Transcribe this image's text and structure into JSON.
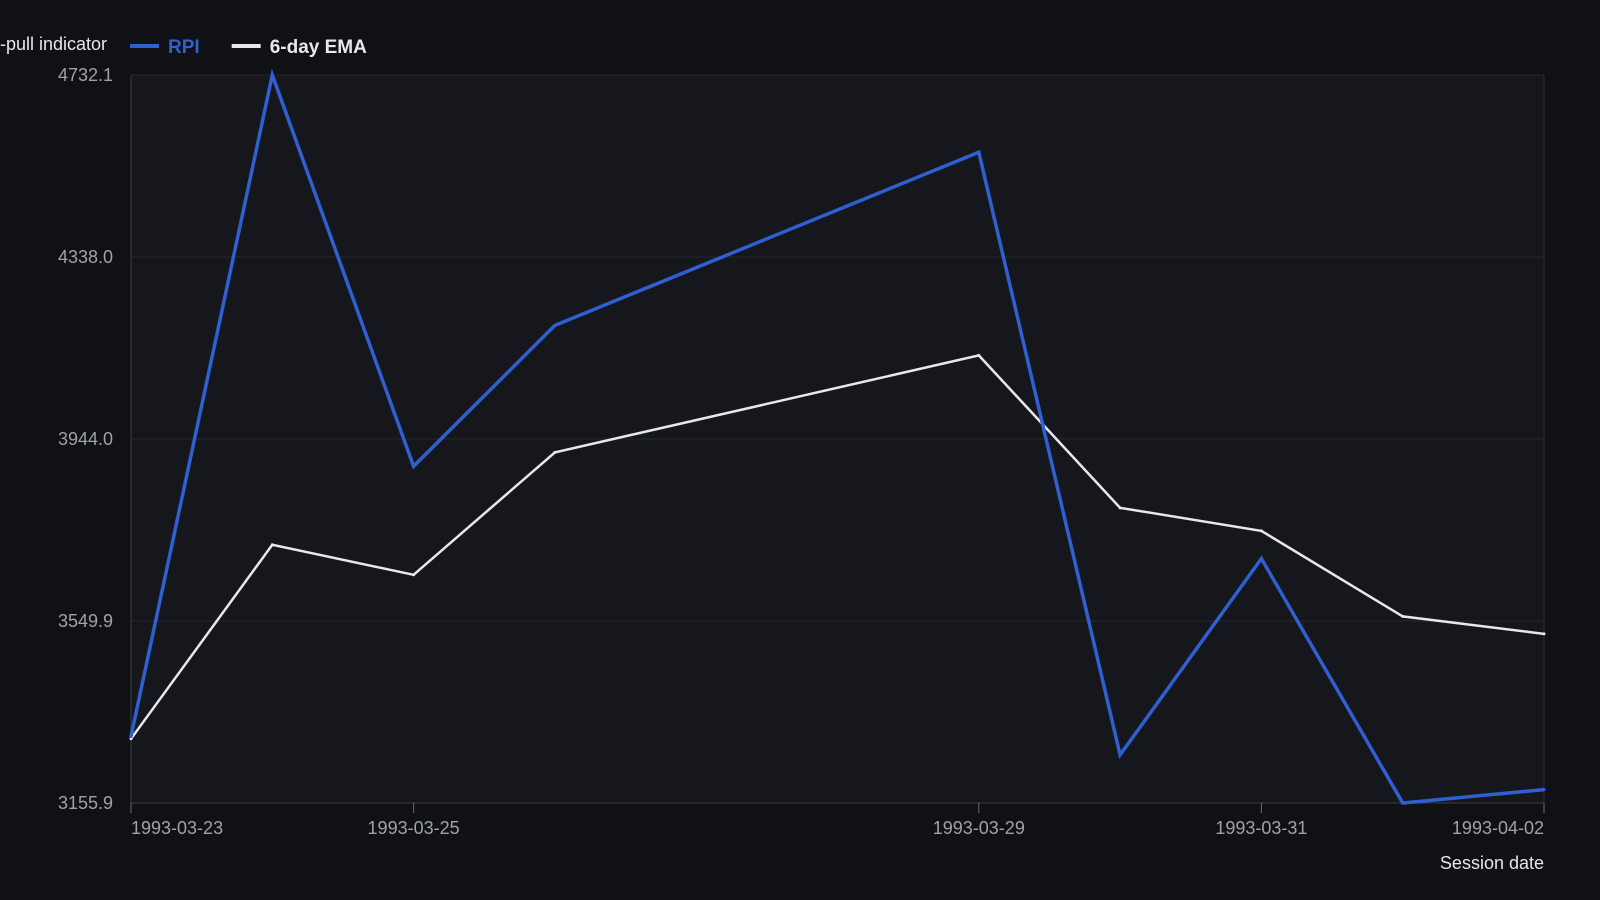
{
  "chart_data": {
    "type": "line",
    "legend_prefix": "-pull indicator",
    "xlabel": "Session date",
    "ylabel": "",
    "x": [
      "1993-03-23",
      "1993-03-24",
      "1993-03-25",
      "1993-03-26",
      "1993-03-29",
      "1993-03-30",
      "1993-03-31",
      "1993-04-01",
      "1993-04-02"
    ],
    "x_ticks": [
      "1993-03-23",
      "1993-03-25",
      "1993-03-29",
      "1993-03-31",
      "1993-04-02"
    ],
    "y_ticks": [
      "3155.9",
      "3549.9",
      "3944.0",
      "4338.0",
      "4732.1"
    ],
    "ylim": [
      3155.9,
      4732.1
    ],
    "grid": true,
    "legend_position": "top-left",
    "series": [
      {
        "name": "RPI",
        "color": "#2f5fd0",
        "values": [
          3300,
          4732.1,
          3885,
          4190,
          4565,
          3260,
          3685,
          3155.9,
          3185
        ]
      },
      {
        "name": "6-day EMA",
        "color": "#e8e8e8",
        "values": [
          3295,
          3715,
          3650,
          3915,
          4125,
          3795,
          3745,
          3560,
          3522
        ]
      }
    ],
    "colors": {
      "background": "#0f1115",
      "plot_background": "#15171c",
      "grid": "#24272e"
    }
  }
}
